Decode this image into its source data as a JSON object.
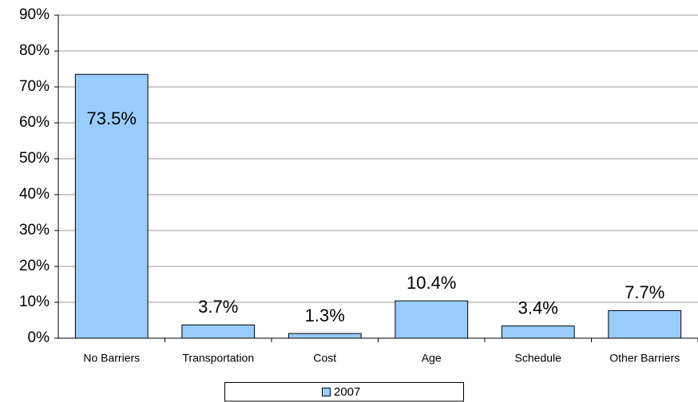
{
  "chart_data": {
    "type": "bar",
    "categories": [
      "No Barriers",
      "Transportation",
      "Cost",
      "Age",
      "Schedule",
      "Other Barriers"
    ],
    "series": [
      {
        "name": "2007",
        "color": "#99ccff",
        "values": [
          73.5,
          3.7,
          1.3,
          10.4,
          3.4,
          7.7
        ],
        "value_labels": [
          "73.5%",
          "3.7%",
          "1.3%",
          "10.4%",
          "3.4%",
          "7.7%"
        ]
      }
    ],
    "ylim": [
      0,
      90
    ],
    "yticks": [
      {
        "value": 0,
        "label": "0%"
      },
      {
        "value": 10,
        "label": "10%"
      },
      {
        "value": 20,
        "label": "20%"
      },
      {
        "value": 30,
        "label": "30%"
      },
      {
        "value": 40,
        "label": "40%"
      },
      {
        "value": 50,
        "label": "50%"
      },
      {
        "value": 60,
        "label": "60%"
      },
      {
        "value": 70,
        "label": "70%"
      },
      {
        "value": 80,
        "label": "80%"
      },
      {
        "value": 90,
        "label": "90%"
      }
    ],
    "grid": true,
    "legend": "bottom"
  }
}
